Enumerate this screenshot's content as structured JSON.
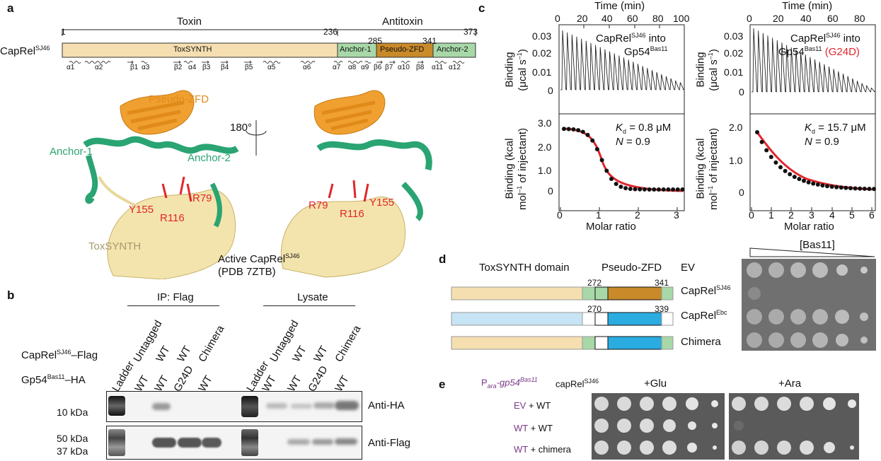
{
  "panel_a": {
    "label": "a",
    "protein_name": "CapRel",
    "protein_sup": "SJ46",
    "toxin_label": "Toxin",
    "antitoxin_label": "Antitoxin",
    "positions": [
      "1",
      "236",
      "285",
      "341",
      "373"
    ],
    "domains": [
      "ToxSYNTH",
      "Anchor-1",
      "Pseudo-ZFD",
      "Anchor-2"
    ],
    "ss_labels": [
      "α1",
      "α2",
      "β1",
      "α3",
      "β2",
      "α4",
      "β3",
      "β4",
      "β5",
      "α5",
      "α6",
      "α7",
      "α8",
      "α9",
      "β6",
      "β7",
      "α10",
      "β8",
      "α11",
      "α12"
    ],
    "struct_labels": {
      "pseudo_zfd": "Pseudo-ZFD",
      "anchor1": "Anchor-1",
      "anchor2": "Anchor-2",
      "rotation": "180°",
      "y155": "Y155",
      "r116": "R116",
      "r79": "R79",
      "toxsynth": "ToxSYNTH",
      "active_line1": "Active CapRel",
      "active_sup": "SJ46",
      "active_line2": "(PDB 7ZTB)"
    },
    "colors": {
      "toxsynth": "#f5deb0",
      "anchor": "#a8d8a8",
      "pseudo": "#c98a2a",
      "residue": "#e0262b",
      "anchor_struct": "#2aa472",
      "pseudo_struct": "#f0a030"
    }
  },
  "panel_b": {
    "label": "b",
    "ip_header": "IP: Flag",
    "lysate_header": "Lysate",
    "row1_label": "CapRel",
    "row1_sup": "SJ46",
    "row1_suffix": "–Flag",
    "row2_label": "Gp54",
    "row2_sup": "Bas11",
    "row2_suffix": "–HA",
    "ladder": "Ladder",
    "capres_top": [
      "Untagged",
      "WT",
      "WT",
      "Chimera"
    ],
    "gp54_row": [
      "WT",
      "WT",
      "G24D",
      "WT"
    ],
    "markers": [
      "10 kDa",
      "50 kDa",
      "37 kDa"
    ],
    "blot_labels": [
      "Anti-HA",
      "Anti-Flag"
    ]
  },
  "panel_c": {
    "label": "c",
    "time_label": "Time (min)",
    "left": {
      "time_ticks": [
        "0",
        "20",
        "40",
        "60",
        "80",
        "100"
      ],
      "title_line1": "CapRel",
      "title_sup1": "SJ46",
      "title_into": " into",
      "title_line2": "Gp54",
      "title_sup2": "Bas11",
      "raw_ticks": [
        "0.03",
        "0.02",
        "0.01",
        "0"
      ],
      "fit_ticks": [
        "3.0",
        "2.0",
        "1.0",
        "0"
      ],
      "x_ticks": [
        "0",
        "1",
        "2",
        "3"
      ],
      "kd_text": "= 0.8 μM",
      "n_text": "= 0.9"
    },
    "right": {
      "time_ticks": [
        "0",
        "20",
        "40",
        "60",
        "80"
      ],
      "title_line1": "CapRel",
      "title_sup1": "SJ46",
      "title_into": " into",
      "title_line2": "Gp54",
      "title_sup2": "Bas11",
      "mutation": "(G24D)",
      "raw_ticks": [
        "0.03",
        "0.02",
        "0.01",
        "0"
      ],
      "fit_ticks": [
        "2.0",
        "1.0",
        "0"
      ],
      "x_ticks": [
        "0",
        "1",
        "2",
        "3",
        "4",
        "5",
        "6"
      ],
      "kd_text": "= 15.7 μM",
      "n_text": "= 0.9"
    },
    "raw_ylabel_1": "Binding",
    "raw_ylabel_2": "(μcal s",
    "raw_ylabel_sup": "–1",
    "fit_ylabel_1": "Binding (kcal",
    "fit_ylabel_2": "mol",
    "fit_ylabel_3": " of injectant)",
    "xlabel": "Molar ratio",
    "kd_symbol": "K",
    "kd_sub": "d",
    "n_symbol": "N"
  },
  "panel_d": {
    "label": "d",
    "toxsynth_domain": "ToxSYNTH domain",
    "pseudo_zfd": "Pseudo-ZFD",
    "bas11": "[Bas11]",
    "row_labels": [
      "EV",
      "CapRel",
      "CapRel",
      "Chimera"
    ],
    "row_sups": [
      "",
      "SJ46",
      "Ebc",
      ""
    ],
    "numbers": [
      "272",
      "341",
      "270",
      "339"
    ]
  },
  "panel_e": {
    "label": "e",
    "promoter": "P",
    "promoter_sub": "ara",
    "gene": "-gp54",
    "gene_sup": "Bas11",
    "caprel": "capRel",
    "caprel_sup": "SJ46",
    "glu": "+Glu",
    "ara": "+Ara",
    "row_labels": [
      {
        "purple": "EV",
        "black": " + WT"
      },
      {
        "purple": "WT",
        "black": " + WT"
      },
      {
        "purple": "WT",
        "black": " + chimera"
      }
    ]
  }
}
